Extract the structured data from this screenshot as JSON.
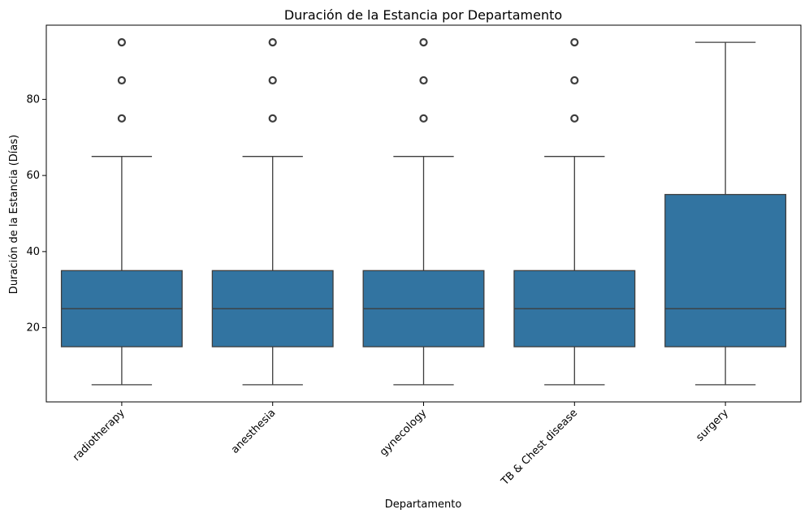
{
  "chart_data": {
    "type": "box",
    "title": "Duración de la Estancia por Departamento",
    "xlabel": "Departamento",
    "ylabel": "Duración de la Estancia (Días)",
    "categories": [
      "radiotherapy",
      "anesthesia",
      "gynecology",
      "TB & Chest disease",
      "surgery"
    ],
    "boxes": [
      {
        "whisker_low": 5,
        "q1": 15,
        "median": 25,
        "q3": 35,
        "whisker_high": 65,
        "outliers": [
          75,
          85,
          95
        ]
      },
      {
        "whisker_low": 5,
        "q1": 15,
        "median": 25,
        "q3": 35,
        "whisker_high": 65,
        "outliers": [
          75,
          85,
          95
        ]
      },
      {
        "whisker_low": 5,
        "q1": 15,
        "median": 25,
        "q3": 35,
        "whisker_high": 65,
        "outliers": [
          75,
          85,
          95
        ]
      },
      {
        "whisker_low": 5,
        "q1": 15,
        "median": 25,
        "q3": 35,
        "whisker_high": 65,
        "outliers": [
          75,
          85,
          95
        ]
      },
      {
        "whisker_low": 5,
        "q1": 15,
        "median": 25,
        "q3": 55,
        "whisker_high": 95,
        "outliers": []
      }
    ],
    "yticks": [
      20,
      40,
      60,
      80
    ],
    "ylim": [
      0.5,
      99.5
    ],
    "grid": false,
    "colors": {
      "box_fill": "#3274a1",
      "line": "#3d3d3d",
      "axis": "#000000"
    }
  }
}
